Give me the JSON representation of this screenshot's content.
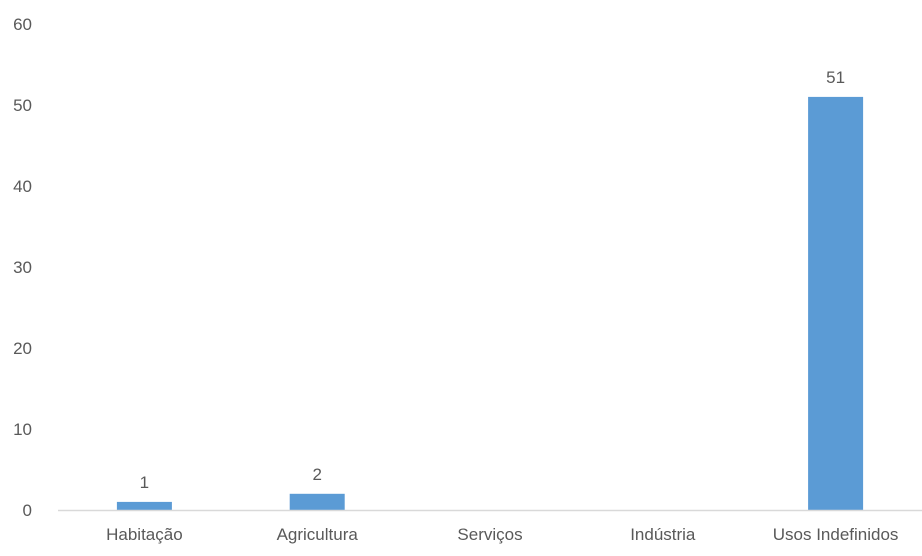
{
  "chart_data": {
    "type": "bar",
    "title": "",
    "xlabel": "",
    "ylabel": "",
    "categories": [
      "Habitação",
      "Agricultura",
      "Serviços",
      "Indústria",
      "Usos Indefinidos"
    ],
    "values": [
      1,
      2,
      0,
      0,
      51
    ],
    "data_labels": [
      "1",
      "2",
      "",
      "",
      "51"
    ],
    "ylim": [
      0,
      60
    ],
    "yticks": [
      0,
      10,
      20,
      30,
      40,
      50,
      60
    ],
    "grid": false,
    "legend": "none",
    "bar_color": "#5B9BD5",
    "axis_color": "#D9D9D9",
    "text_color": "#595959"
  }
}
